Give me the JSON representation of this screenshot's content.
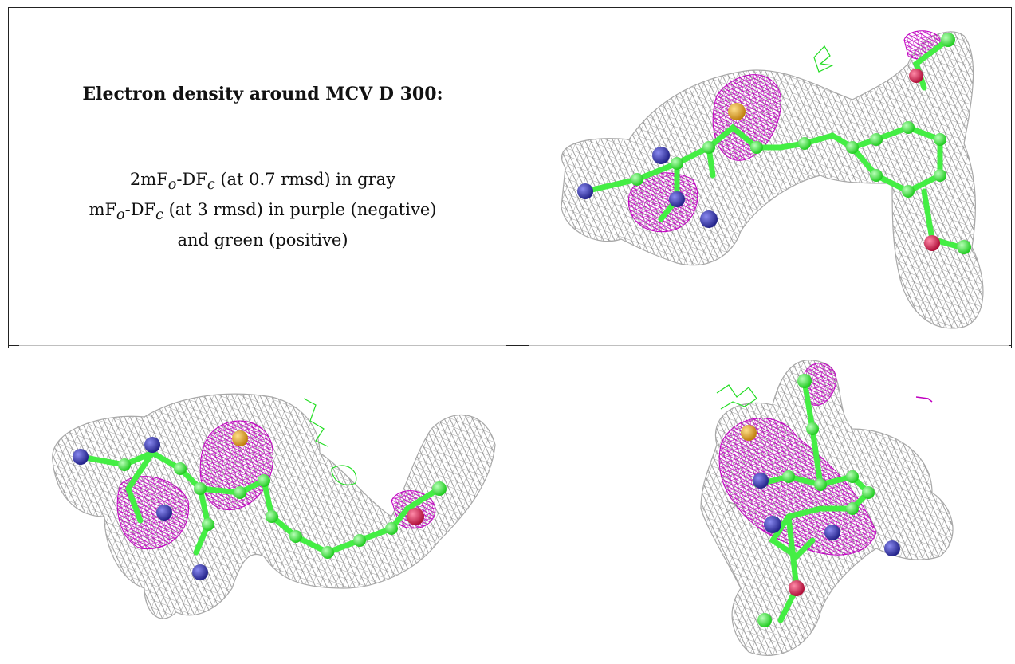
{
  "legend": {
    "title": "Electron density around MCV D 300:",
    "line1": "2mF",
    "line1_sub_o": "o",
    "line1_mid": "-DF",
    "line1_sub_c": "c",
    "line1_tail": " (at 0.7 rmsd) in gray",
    "line2": "mF",
    "line2_sub_o": "o",
    "line2_mid": "-DF",
    "line2_sub_c": "c",
    "line2_tail": " (at 3 rmsd) in purple (negative)",
    "line3": "and green (positive)"
  },
  "colors": {
    "mesh_gray": "#9a9a9a",
    "negative_purple": "#c000c0",
    "positive_green": "#22dd22",
    "carbon": "#44ee44",
    "nitrogen": "#3a3ab8",
    "oxygen": "#e0204a",
    "sulfur": "#e0a020"
  }
}
